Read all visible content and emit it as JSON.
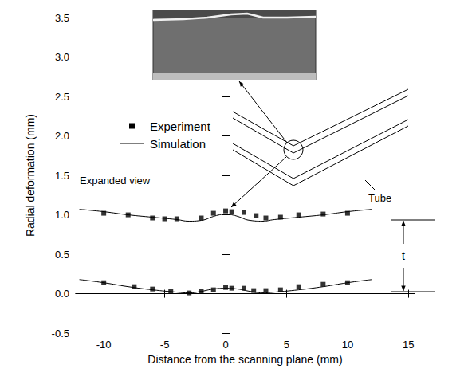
{
  "chart_data": {
    "type": "scatter",
    "xlabel": "Distance from the scanning plane (mm)",
    "ylabel": "Radial deformation (mm)",
    "xlim": [
      -12.3,
      15.5
    ],
    "xticks": [
      -10,
      -5,
      0,
      5,
      10,
      15
    ],
    "ylim": [
      -0.5,
      3.5
    ],
    "yticks": [
      {
        "value": -0.5,
        "label": "-0.5"
      },
      {
        "value": 0,
        "label": "0.0"
      },
      {
        "value": 0.5,
        "label": "0.5"
      },
      {
        "value": 1,
        "label": "1.0"
      },
      {
        "value": 1.5,
        "label": "1.5"
      },
      {
        "value": 2,
        "label": "2.0"
      },
      {
        "value": 2.5,
        "label": "2.5"
      },
      {
        "value": 3,
        "label": "3.0"
      },
      {
        "value": 3.5,
        "label": "3.5"
      }
    ],
    "grid": false,
    "legend": "left",
    "annotations": [
      "Expanded view",
      "Tube",
      "t"
    ],
    "series": [
      {
        "name": "Experiment",
        "type": "scatter",
        "marker": "square",
        "color": "#000000",
        "x": [
          -10,
          -8,
          -6,
          -5,
          -4,
          -2,
          -1,
          0,
          0.5,
          1.5,
          2.5,
          3.3,
          4.5,
          6,
          8,
          10
        ],
        "values": [
          1.02,
          1.0,
          0.96,
          0.95,
          0.95,
          0.96,
          1.02,
          1.05,
          1.04,
          1.03,
          0.99,
          0.96,
          0.97,
          1.0,
          1.01,
          1.02
        ]
      },
      {
        "name": "Experiment",
        "type": "scatter",
        "marker": "square",
        "color": "#000000",
        "x": [
          -10,
          -7.5,
          -6,
          -4.5,
          -3,
          -2,
          -1,
          0,
          0.5,
          1.5,
          2.3,
          3.3,
          4.5,
          6,
          8,
          10
        ],
        "values": [
          0.14,
          0.09,
          0.06,
          0.03,
          0.01,
          0.03,
          0.05,
          0.08,
          0.07,
          0.07,
          0.04,
          0.04,
          0.05,
          0.09,
          0.12,
          0.14
        ]
      },
      {
        "name": "Simulation",
        "type": "line",
        "line_style": "solid",
        "color": "#000000",
        "x": [
          -12,
          -10,
          -8,
          -6,
          -4,
          -3,
          -2,
          -1,
          -0.5,
          0,
          0.5,
          1,
          2,
          3,
          4,
          6,
          8,
          10,
          12
        ],
        "values": [
          1.07,
          1.04,
          1.0,
          0.97,
          0.94,
          0.92,
          0.93,
          0.98,
          1.0,
          1.01,
          1.0,
          0.98,
          0.93,
          0.92,
          0.94,
          0.97,
          1.0,
          1.04,
          1.07
        ]
      },
      {
        "name": "Simulation",
        "type": "line",
        "line_style": "solid",
        "color": "#000000",
        "x": [
          -12,
          -10,
          -8,
          -6,
          -4,
          -3,
          -2,
          -1,
          0,
          1,
          2,
          3,
          4,
          6,
          8,
          10,
          12
        ],
        "values": [
          0.18,
          0.14,
          0.09,
          0.05,
          0.02,
          0.01,
          0.03,
          0.06,
          0.07,
          0.06,
          0.03,
          0.01,
          0.02,
          0.05,
          0.09,
          0.14,
          0.18
        ]
      }
    ]
  }
}
